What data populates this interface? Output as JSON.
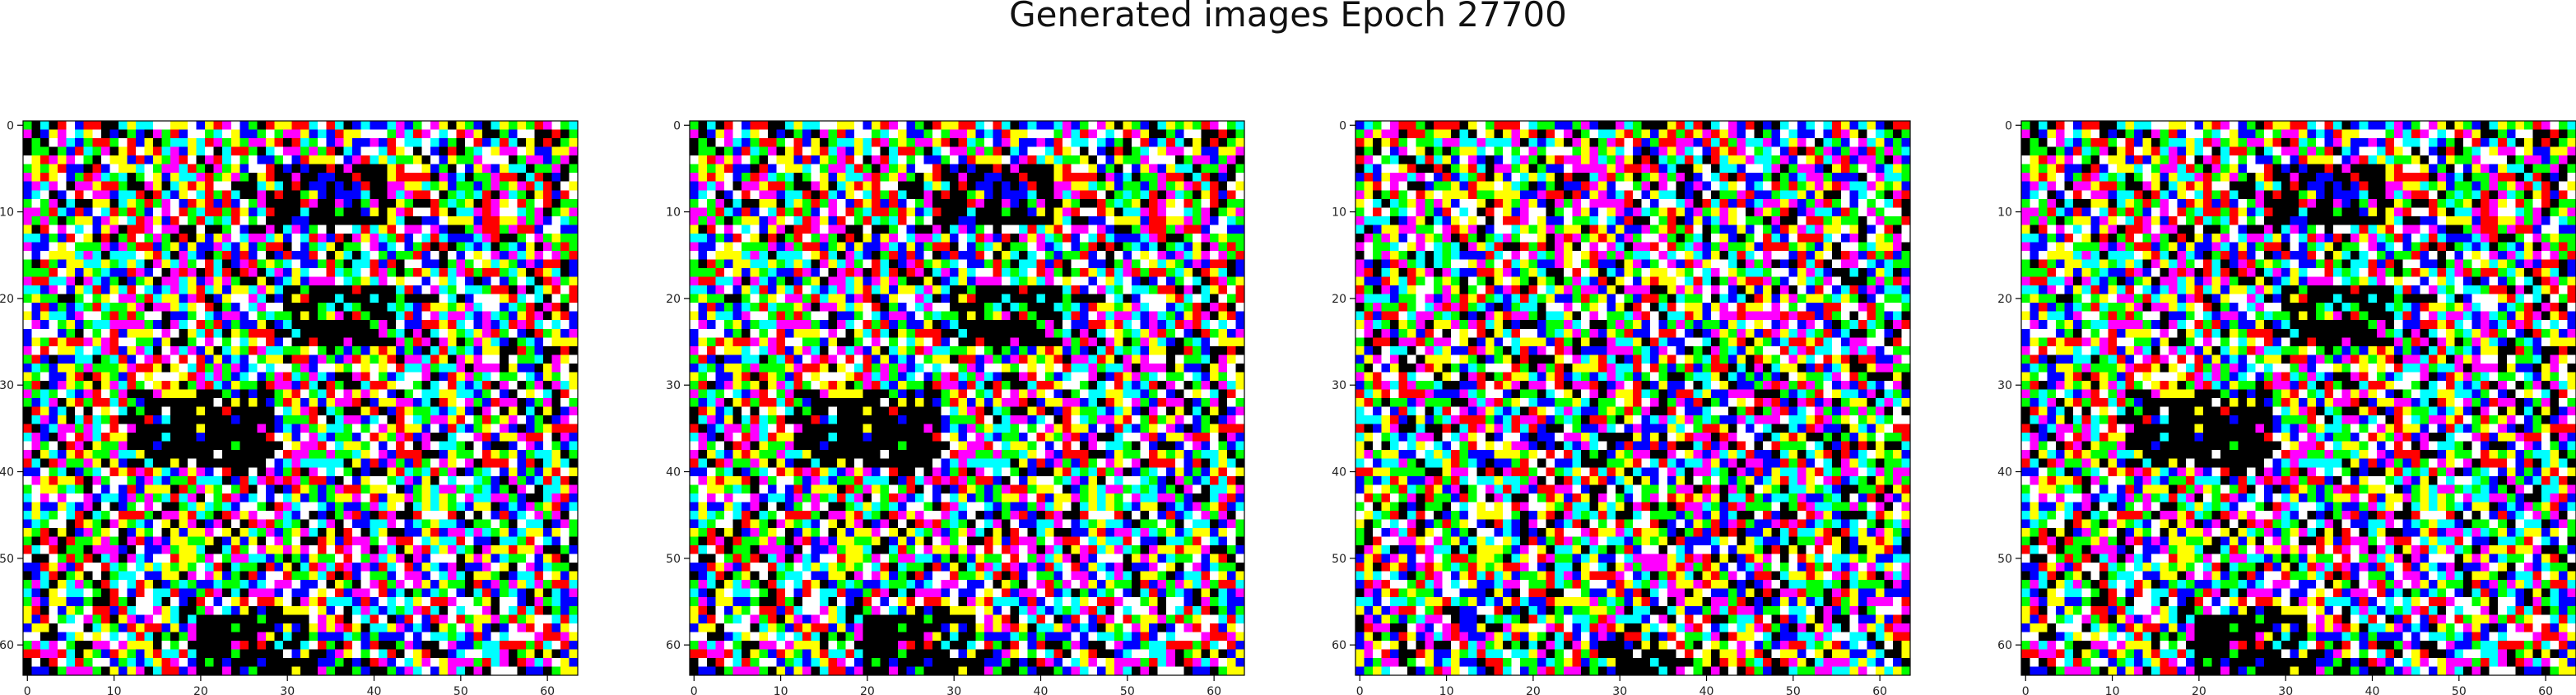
{
  "figure": {
    "title": "Generated images Epoch 27700"
  },
  "chart_data": [
    {
      "type": "heatmap",
      "title": "",
      "xlabel": "",
      "ylabel": "",
      "xlim": [
        0,
        63
      ],
      "ylim": [
        63,
        0
      ],
      "x_ticks": [
        0,
        10,
        20,
        30,
        40,
        50,
        60
      ],
      "y_ticks": [
        0,
        10,
        20,
        30,
        40,
        50,
        60
      ],
      "grid": false,
      "pixels": [
        64,
        64
      ],
      "palette": [
        "#ff0000",
        "#00ff00",
        "#0000ff",
        "#ffff00",
        "#00ffff",
        "#ff00ff",
        "#ffffff",
        "#000000"
      ],
      "seed": 7,
      "dark_regions": [
        {
          "row": 8,
          "col": 35,
          "r": 3,
          "color": "#000000"
        },
        {
          "row": 22,
          "col": 36,
          "r": 3,
          "color": "#000000"
        },
        {
          "row": 35,
          "col": 20,
          "r": 4,
          "color": "#000000"
        },
        {
          "row": 60,
          "col": 26,
          "r": 3,
          "color": "#000000"
        },
        {
          "row": 7,
          "col": 36,
          "r": 1,
          "color": "#0000ff"
        }
      ]
    },
    {
      "type": "heatmap",
      "title": "",
      "xlabel": "",
      "ylabel": "",
      "xlim": [
        0,
        63
      ],
      "ylim": [
        63,
        0
      ],
      "x_ticks": [
        0,
        10,
        20,
        30,
        40,
        50,
        60
      ],
      "y_ticks": [
        0,
        10,
        20,
        30,
        40,
        50,
        60
      ],
      "grid": false,
      "pixels": [
        64,
        64
      ],
      "palette": [
        "#ff0000",
        "#00ff00",
        "#0000ff",
        "#ffff00",
        "#00ffff",
        "#ff00ff",
        "#ffffff",
        "#000000"
      ],
      "seed": 7,
      "dark_regions": [
        {
          "row": 8,
          "col": 35,
          "r": 3,
          "color": "#000000"
        },
        {
          "row": 22,
          "col": 36,
          "r": 3,
          "color": "#000000"
        },
        {
          "row": 35,
          "col": 20,
          "r": 4,
          "color": "#000000"
        },
        {
          "row": 60,
          "col": 26,
          "r": 3,
          "color": "#000000"
        },
        {
          "row": 7,
          "col": 36,
          "r": 1,
          "color": "#0000ff"
        }
      ]
    },
    {
      "type": "heatmap",
      "title": "",
      "xlabel": "",
      "ylabel": "",
      "xlim": [
        0,
        63
      ],
      "ylim": [
        63,
        0
      ],
      "x_ticks": [
        0,
        10,
        20,
        30,
        40,
        50,
        60
      ],
      "y_ticks": [
        0,
        10,
        20,
        30,
        40,
        50,
        60
      ],
      "grid": false,
      "pixels": [
        64,
        64
      ],
      "palette": [
        "#ff0000",
        "#00ff00",
        "#0000ff",
        "#ffff00",
        "#00ffff",
        "#ff00ff",
        "#ffffff",
        "#000000"
      ],
      "seed": 113,
      "dark_regions": [
        {
          "row": 62,
          "col": 32,
          "r": 2,
          "color": "#000000"
        }
      ]
    },
    {
      "type": "heatmap",
      "title": "",
      "xlabel": "",
      "ylabel": "",
      "xlim": [
        0,
        63
      ],
      "ylim": [
        63,
        0
      ],
      "x_ticks": [
        0,
        10,
        20,
        30,
        40,
        50,
        60
      ],
      "y_ticks": [
        0,
        10,
        20,
        30,
        40,
        50,
        60
      ],
      "grid": false,
      "pixels": [
        64,
        64
      ],
      "palette": [
        "#ff0000",
        "#00ff00",
        "#0000ff",
        "#ffff00",
        "#00ffff",
        "#ff00ff",
        "#ffffff",
        "#000000"
      ],
      "seed": 7,
      "dark_regions": [
        {
          "row": 8,
          "col": 35,
          "r": 3,
          "color": "#000000"
        },
        {
          "row": 22,
          "col": 36,
          "r": 3,
          "color": "#000000"
        },
        {
          "row": 35,
          "col": 20,
          "r": 4,
          "color": "#000000"
        },
        {
          "row": 60,
          "col": 26,
          "r": 3,
          "color": "#000000"
        },
        {
          "row": 7,
          "col": 36,
          "r": 1,
          "color": "#0000ff"
        }
      ]
    }
  ]
}
